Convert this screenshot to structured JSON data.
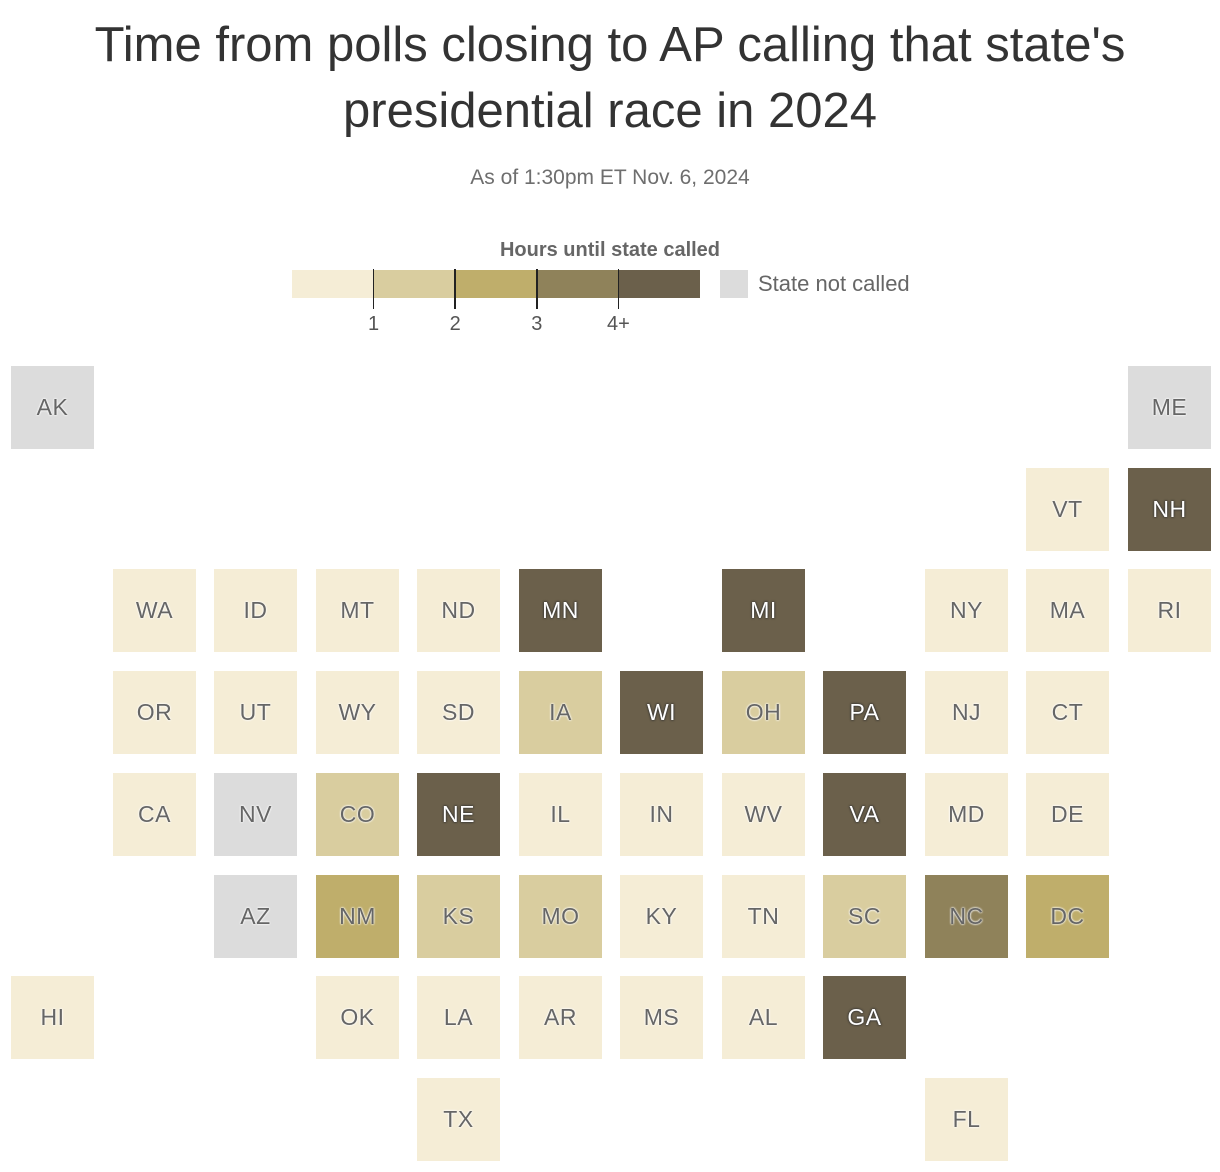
{
  "title": "Time from polls closing to AP calling that state's presidential race in 2024",
  "subtitle": "As of 1:30pm ET Nov. 6, 2024",
  "legend": {
    "title": "Hours until state called",
    "ticks": [
      "1",
      "2",
      "3",
      "4+"
    ],
    "colors": [
      "#f5edd6",
      "#d9cd9f",
      "#bfae6b",
      "#8f825a",
      "#6b604b"
    ],
    "not_called_label": "State not called",
    "not_called_color": "#dcdcdc"
  },
  "map_data": {
    "value_meaning": "color bin index: 0 = under 1 hour, 1 = 1-2, 2 = 2-3, 3 = 3-4, 4 = 4+, null = not called",
    "states": [
      {
        "abbr": "AK",
        "row": 0,
        "col": 0,
        "bin": null
      },
      {
        "abbr": "ME",
        "row": 0,
        "col": 11,
        "bin": null
      },
      {
        "abbr": "VT",
        "row": 1,
        "col": 10,
        "bin": 0
      },
      {
        "abbr": "NH",
        "row": 1,
        "col": 11,
        "bin": 4
      },
      {
        "abbr": "WA",
        "row": 2,
        "col": 1,
        "bin": 0
      },
      {
        "abbr": "ID",
        "row": 2,
        "col": 2,
        "bin": 0
      },
      {
        "abbr": "MT",
        "row": 2,
        "col": 3,
        "bin": 0
      },
      {
        "abbr": "ND",
        "row": 2,
        "col": 4,
        "bin": 0
      },
      {
        "abbr": "MN",
        "row": 2,
        "col": 5,
        "bin": 4
      },
      {
        "abbr": "MI",
        "row": 2,
        "col": 7,
        "bin": 4
      },
      {
        "abbr": "NY",
        "row": 2,
        "col": 9,
        "bin": 0
      },
      {
        "abbr": "MA",
        "row": 2,
        "col": 10,
        "bin": 0
      },
      {
        "abbr": "RI",
        "row": 2,
        "col": 11,
        "bin": 0
      },
      {
        "abbr": "OR",
        "row": 3,
        "col": 1,
        "bin": 0
      },
      {
        "abbr": "UT",
        "row": 3,
        "col": 2,
        "bin": 0
      },
      {
        "abbr": "WY",
        "row": 3,
        "col": 3,
        "bin": 0
      },
      {
        "abbr": "SD",
        "row": 3,
        "col": 4,
        "bin": 0
      },
      {
        "abbr": "IA",
        "row": 3,
        "col": 5,
        "bin": 1
      },
      {
        "abbr": "WI",
        "row": 3,
        "col": 6,
        "bin": 4
      },
      {
        "abbr": "OH",
        "row": 3,
        "col": 7,
        "bin": 1
      },
      {
        "abbr": "PA",
        "row": 3,
        "col": 8,
        "bin": 4
      },
      {
        "abbr": "NJ",
        "row": 3,
        "col": 9,
        "bin": 0
      },
      {
        "abbr": "CT",
        "row": 3,
        "col": 10,
        "bin": 0
      },
      {
        "abbr": "CA",
        "row": 4,
        "col": 1,
        "bin": 0
      },
      {
        "abbr": "NV",
        "row": 4,
        "col": 2,
        "bin": null
      },
      {
        "abbr": "CO",
        "row": 4,
        "col": 3,
        "bin": 1
      },
      {
        "abbr": "NE",
        "row": 4,
        "col": 4,
        "bin": 4
      },
      {
        "abbr": "IL",
        "row": 4,
        "col": 5,
        "bin": 0
      },
      {
        "abbr": "IN",
        "row": 4,
        "col": 6,
        "bin": 0
      },
      {
        "abbr": "WV",
        "row": 4,
        "col": 7,
        "bin": 0
      },
      {
        "abbr": "VA",
        "row": 4,
        "col": 8,
        "bin": 4
      },
      {
        "abbr": "MD",
        "row": 4,
        "col": 9,
        "bin": 0
      },
      {
        "abbr": "DE",
        "row": 4,
        "col": 10,
        "bin": 0
      },
      {
        "abbr": "AZ",
        "row": 5,
        "col": 2,
        "bin": null
      },
      {
        "abbr": "NM",
        "row": 5,
        "col": 3,
        "bin": 2
      },
      {
        "abbr": "KS",
        "row": 5,
        "col": 4,
        "bin": 1
      },
      {
        "abbr": "MO",
        "row": 5,
        "col": 5,
        "bin": 1
      },
      {
        "abbr": "KY",
        "row": 5,
        "col": 6,
        "bin": 0
      },
      {
        "abbr": "TN",
        "row": 5,
        "col": 7,
        "bin": 0
      },
      {
        "abbr": "SC",
        "row": 5,
        "col": 8,
        "bin": 1
      },
      {
        "abbr": "NC",
        "row": 5,
        "col": 9,
        "bin": 3
      },
      {
        "abbr": "DC",
        "row": 5,
        "col": 10,
        "bin": 2
      },
      {
        "abbr": "HI",
        "row": 6,
        "col": 0,
        "bin": 0
      },
      {
        "abbr": "OK",
        "row": 6,
        "col": 3,
        "bin": 0
      },
      {
        "abbr": "LA",
        "row": 6,
        "col": 4,
        "bin": 0
      },
      {
        "abbr": "AR",
        "row": 6,
        "col": 5,
        "bin": 0
      },
      {
        "abbr": "MS",
        "row": 6,
        "col": 6,
        "bin": 0
      },
      {
        "abbr": "AL",
        "row": 6,
        "col": 7,
        "bin": 0
      },
      {
        "abbr": "GA",
        "row": 6,
        "col": 8,
        "bin": 4
      },
      {
        "abbr": "TX",
        "row": 7,
        "col": 4,
        "bin": 0
      },
      {
        "abbr": "FL",
        "row": 7,
        "col": 9,
        "bin": 0
      }
    ]
  }
}
